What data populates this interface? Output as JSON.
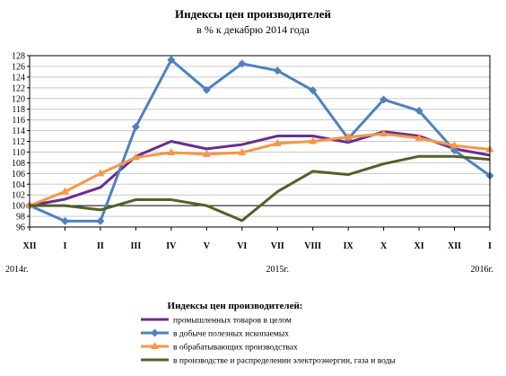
{
  "chart_data": {
    "type": "line",
    "title": "Индексы цен производителей",
    "subtitle": "в % к декабрю 2014 года",
    "categories": [
      "XII",
      "I",
      "II",
      "III",
      "IV",
      "V",
      "VI",
      "VII",
      "VIII",
      "IX",
      "X",
      "XI",
      "XII",
      "I"
    ],
    "year_labels": [
      {
        "text": "2014г.",
        "category_index": 0
      },
      {
        "text": "2015г.",
        "category_index": 7
      },
      {
        "text": "2016г.",
        "category_index": 13
      }
    ],
    "ylim": [
      96,
      128
    ],
    "yticks": [
      96,
      98,
      100,
      102,
      104,
      106,
      108,
      110,
      112,
      114,
      116,
      118,
      120,
      122,
      124,
      126,
      128
    ],
    "grid": true,
    "legend_title": "Индексы цен производителей:",
    "legend_position": "bottom",
    "series": [
      {
        "name": "промышленных товаров в целом",
        "color": "#6a2c8e",
        "marker": "none",
        "values": [
          100,
          101.2,
          103.4,
          109.2,
          112,
          110.6,
          111.4,
          113,
          113,
          111.8,
          113.8,
          113,
          110.6,
          109.4
        ]
      },
      {
        "name": "в добыче полезных ископаемых",
        "color": "#4f81bd",
        "marker": "diamond",
        "values": [
          100,
          97.1,
          97.1,
          114.7,
          127.2,
          121.6,
          126.5,
          125.2,
          121.5,
          112.5,
          119.8,
          117.7,
          110.3,
          105.6
        ]
      },
      {
        "name": "в обрабатывающих производствах",
        "color": "#f79646",
        "marker": "triangle",
        "values": [
          100,
          102.6,
          106,
          109,
          109.9,
          109.6,
          109.9,
          111.6,
          112,
          112.8,
          113.4,
          112.6,
          111.2,
          110.5
        ]
      },
      {
        "name": "в производстве и распределении электроэнергии, газа и воды",
        "color": "#4f6228",
        "marker": "none",
        "values": [
          100,
          100,
          99.2,
          101.1,
          101.1,
          100,
          97.2,
          102.6,
          106.4,
          105.8,
          107.8,
          109.2,
          109.2,
          108.6
        ]
      }
    ]
  }
}
